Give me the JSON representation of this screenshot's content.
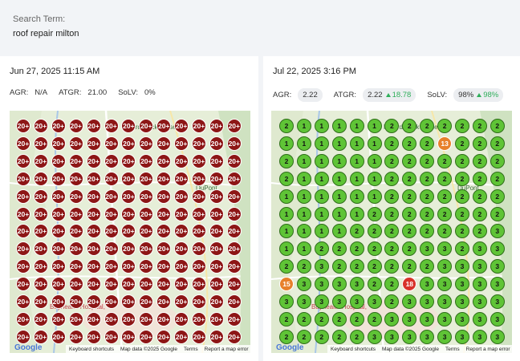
{
  "search": {
    "label": "Search Term:",
    "term": "roof repair milton"
  },
  "map": {
    "labels": [
      "Milford Neck Preserve",
      "DuPont",
      "Bayhealth Hospital,"
    ],
    "footer": [
      "Keyboard shortcuts",
      "Map data ©2025 Google",
      "Terms",
      "Report a map error"
    ],
    "logo": "Google"
  },
  "panels": [
    {
      "date": "Jun 27, 2025 11:15 AM",
      "metrics": [
        {
          "label": "AGR:",
          "value": "N/A"
        },
        {
          "label": "ATGR:",
          "value": "21.00"
        },
        {
          "label": "SoLV:",
          "value": "0%"
        }
      ],
      "grid": [
        [
          "20+",
          "20+",
          "20+",
          "20+",
          "20+",
          "20+",
          "20+",
          "20+",
          "20+",
          "20+",
          "20+",
          "20+",
          "20+"
        ],
        [
          "20+",
          "20+",
          "20+",
          "20+",
          "20+",
          "20+",
          "20+",
          "20+",
          "20+",
          "20+",
          "20+",
          "20+",
          "20+"
        ],
        [
          "20+",
          "20+",
          "20+",
          "20+",
          "20+",
          "20+",
          "20+",
          "20+",
          "20+",
          "20+",
          "20+",
          "20+",
          "20+"
        ],
        [
          "20+",
          "20+",
          "20+",
          "20+",
          "20+",
          "20+",
          "20+",
          "20+",
          "20+",
          "20+",
          "20+",
          "20+",
          "20+"
        ],
        [
          "20+",
          "20+",
          "20+",
          "20+",
          "20+",
          "20+",
          "20+",
          "20+",
          "20+",
          "20+",
          "20+",
          "20+",
          "20+"
        ],
        [
          "20+",
          "20+",
          "20+",
          "20+",
          "20+",
          "20+",
          "20+",
          "20+",
          "20+",
          "20+",
          "20+",
          "20+",
          "20+"
        ],
        [
          "20+",
          "20+",
          "20+",
          "20+",
          "20+",
          "20+",
          "20+",
          "20+",
          "20+",
          "20+",
          "20+",
          "20+",
          "20+"
        ],
        [
          "20+",
          "20+",
          "20+",
          "20+",
          "20+",
          "20+",
          "20+",
          "20+",
          "20+",
          "20+",
          "20+",
          "20+",
          "20+"
        ],
        [
          "20+",
          "20+",
          "20+",
          "20+",
          "20+",
          "20+",
          "20+",
          "20+",
          "20+",
          "20+",
          "20+",
          "20+",
          "20+"
        ],
        [
          "20+",
          "20+",
          "20+",
          "20+",
          "20+",
          "20+",
          "20+",
          "20+",
          "20+",
          "20+",
          "20+",
          "20+",
          "20+"
        ],
        [
          "20+",
          "20+",
          "20+",
          "20+",
          "20+",
          "20+",
          "20+",
          "20+",
          "20+",
          "20+",
          "20+",
          "20+",
          "20+"
        ],
        [
          "20+",
          "20+",
          "20+",
          "20+",
          "20+",
          "20+",
          "20+",
          "20+",
          "20+",
          "20+",
          "20+",
          "20+",
          "20+"
        ],
        [
          "20+",
          "20+",
          "20+",
          "20+",
          "20+",
          "20+",
          "20+",
          "20+",
          "20+",
          "20+",
          "20+",
          "20+",
          "20+"
        ]
      ]
    },
    {
      "date": "Jul 22, 2025 3:16 PM",
      "metrics": [
        {
          "label": "AGR:",
          "value": "2.22"
        },
        {
          "label": "ATGR:",
          "value": "2.22",
          "change": "18.78"
        },
        {
          "label": "SoLV:",
          "value": "98%",
          "change": "98%"
        }
      ],
      "grid": [
        [
          2,
          1,
          1,
          1,
          1,
          1,
          2,
          2,
          2,
          2,
          2,
          2,
          2
        ],
        [
          1,
          1,
          1,
          1,
          1,
          1,
          2,
          2,
          2,
          13,
          2,
          2,
          2
        ],
        [
          2,
          1,
          1,
          1,
          1,
          1,
          2,
          2,
          2,
          2,
          2,
          2,
          2
        ],
        [
          2,
          1,
          1,
          1,
          1,
          1,
          2,
          2,
          2,
          2,
          2,
          2,
          2
        ],
        [
          1,
          1,
          1,
          1,
          1,
          1,
          2,
          2,
          2,
          2,
          2,
          2,
          2
        ],
        [
          1,
          1,
          1,
          1,
          1,
          2,
          2,
          2,
          2,
          2,
          2,
          2,
          2
        ],
        [
          1,
          1,
          1,
          1,
          2,
          2,
          2,
          2,
          2,
          2,
          2,
          2,
          3
        ],
        [
          1,
          1,
          2,
          2,
          2,
          2,
          2,
          2,
          3,
          3,
          2,
          3,
          3
        ],
        [
          2,
          2,
          3,
          2,
          2,
          2,
          2,
          2,
          2,
          3,
          3,
          3,
          3
        ],
        [
          15,
          3,
          3,
          3,
          3,
          2,
          2,
          18,
          3,
          3,
          3,
          3,
          3
        ],
        [
          3,
          3,
          3,
          3,
          3,
          3,
          2,
          3,
          3,
          3,
          3,
          3,
          3
        ],
        [
          2,
          2,
          2,
          2,
          2,
          2,
          3,
          3,
          3,
          3,
          3,
          3,
          3
        ],
        [
          2,
          2,
          2,
          2,
          2,
          3,
          3,
          3,
          3,
          3,
          3,
          3,
          3
        ]
      ]
    }
  ]
}
